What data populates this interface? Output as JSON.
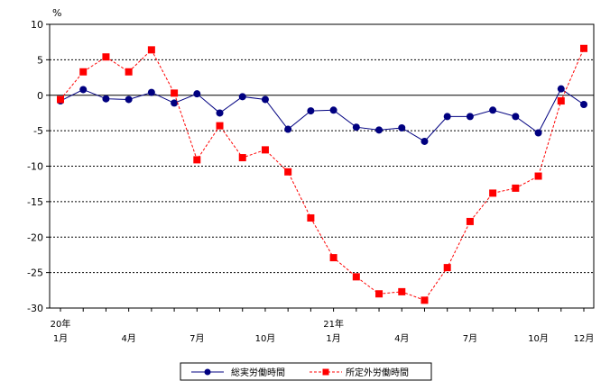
{
  "chart_data": {
    "type": "line",
    "unit_label": "%",
    "ylim": [
      -30,
      10
    ],
    "y_ticks": [
      10,
      5,
      0,
      -5,
      -10,
      -15,
      -20,
      -25,
      -30
    ],
    "grid": "horizontal dashed",
    "legend_position": "bottom-center",
    "x_count": 24,
    "x_labels": [
      {
        "index": 0,
        "year": "20年",
        "month": "1月"
      },
      {
        "index": 3,
        "year": "",
        "month": "4月"
      },
      {
        "index": 6,
        "year": "",
        "month": "7月"
      },
      {
        "index": 9,
        "year": "",
        "month": "10月"
      },
      {
        "index": 12,
        "year": "21年",
        "month": "1月"
      },
      {
        "index": 15,
        "year": "",
        "month": "4月"
      },
      {
        "index": 18,
        "year": "",
        "month": "7月"
      },
      {
        "index": 21,
        "year": "",
        "month": "10月"
      },
      {
        "index": 23,
        "year": "",
        "month": "12月"
      }
    ],
    "series": [
      {
        "name": "総実労働時間",
        "color": "#000080",
        "marker": "circle",
        "line_style": "solid",
        "values": [
          -0.8,
          0.8,
          -0.5,
          -0.6,
          0.4,
          -1.1,
          0.2,
          -2.5,
          -0.2,
          -0.6,
          -4.8,
          -2.2,
          -2.1,
          -4.5,
          -4.9,
          -4.6,
          -6.5,
          -3.0,
          -3.0,
          -2.1,
          -3.0,
          -5.3,
          0.9,
          -1.3
        ]
      },
      {
        "name": "所定外労働時間",
        "color": "#ff0000",
        "marker": "square",
        "line_style": "dashed",
        "values": [
          -0.6,
          3.3,
          5.4,
          3.3,
          6.4,
          0.3,
          -9.1,
          -4.3,
          -8.8,
          -7.7,
          -10.8,
          -17.3,
          -22.9,
          -25.6,
          -28.0,
          -27.7,
          -28.9,
          -24.3,
          -17.8,
          -13.8,
          -13.1,
          -11.4,
          -0.8,
          6.6
        ]
      }
    ]
  }
}
